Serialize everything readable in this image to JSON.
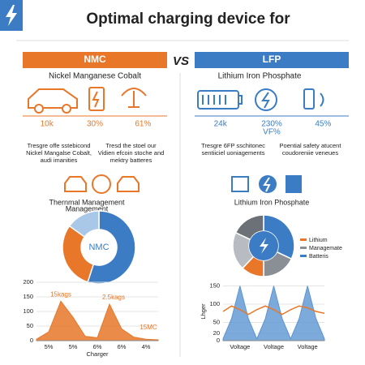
{
  "header": {
    "title": "Optimal charging device for"
  },
  "vs": "VS",
  "left": {
    "banner": "NMC",
    "color": "#e8772a",
    "subtitle": "Nickel Manganese Cobalt",
    "stats": [
      "10k",
      "30%",
      "61%"
    ],
    "notes": [
      [
        "Tresgre offe sstebicond",
        "Nickel Mangalse Cobalt,",
        "audi imanities"
      ],
      [
        "Tresd the stoel our",
        "Vidien efcoin stoche and",
        "mektry batteres"
      ]
    ],
    "section_title": [
      "Thernmal Management",
      "Management"
    ],
    "donut": {
      "type": "pie",
      "center": "NMC",
      "values": [
        55,
        30,
        15
      ],
      "colors": [
        "#3b7cc4",
        "#e8772a",
        "#a9c8e8"
      ]
    },
    "chart": {
      "type": "area",
      "values": [
        5,
        30,
        135,
        80,
        15,
        10,
        125,
        40,
        12,
        5,
        3
      ],
      "color": "#e8772a",
      "ylim": [
        0,
        200
      ],
      "yticks": [
        0,
        50,
        100,
        150,
        200
      ],
      "categories": [
        "5%",
        "5%",
        "6%",
        "6%",
        "4%"
      ],
      "xlabel": "Charger",
      "annotations": [
        "15kags",
        "2.5kags",
        "15MC"
      ]
    }
  },
  "right": {
    "banner": "LFP",
    "color": "#3b7cc4",
    "subtitle": "Lithium Iron Phosphate",
    "stats": [
      "24k",
      "230%",
      "45%"
    ],
    "stat_sub": "VF%",
    "notes": [
      [
        "Tresgre 6FP sschitonec",
        "sentiiciel uoniagements"
      ],
      [
        "Poential safety atucent",
        "coudoreniie veneues"
      ]
    ],
    "section_title": [
      "Lithium Iron Phosphate"
    ],
    "donut": {
      "type": "pie",
      "values": [
        32,
        18,
        12,
        20,
        18
      ],
      "colors": [
        "#3b7cc4",
        "#8a8f96",
        "#e8772a",
        "#b8bcc2",
        "#6c7178"
      ]
    },
    "legend": [
      "Lithium",
      "Managemate",
      "Batteris"
    ],
    "legend_colors": [
      "#e8772a",
      "#8a8f96",
      "#3b7cc4"
    ],
    "chart": {
      "type": "area",
      "values": [
        5,
        60,
        150,
        60,
        5,
        60,
        150,
        60,
        5,
        60,
        150,
        60,
        5
      ],
      "color": "#5b95d2",
      "line": [
        80,
        95,
        85,
        72,
        85,
        95,
        85,
        72,
        85,
        95,
        90,
        80,
        75
      ],
      "line_color": "#e8772a",
      "ylim": [
        0,
        160
      ],
      "yticks": [
        0,
        20,
        50,
        100,
        150
      ],
      "ylabel": "Lhger",
      "categories": [
        "Voltage",
        "Voltage",
        "Voltage"
      ]
    }
  }
}
